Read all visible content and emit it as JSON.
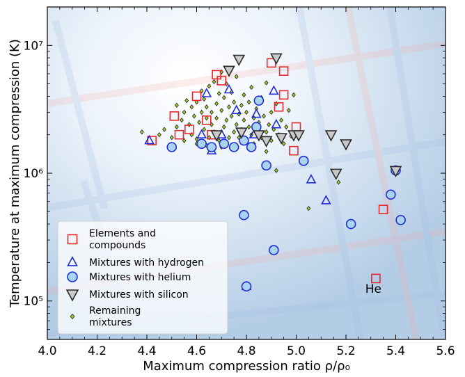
{
  "chart_data": {
    "type": "scatter",
    "xlabel": "Maximum compression ratio ρ/ρ₀",
    "ylabel": "Temperature at maximum compression (K)",
    "xlim": [
      4.0,
      5.6
    ],
    "ylim": [
      50000,
      20000000
    ],
    "yscale": "log",
    "x_ticks": [
      4.0,
      4.2,
      4.4,
      4.6,
      4.8,
      5.0,
      5.2,
      5.4,
      5.6
    ],
    "x_tick_labels": [
      "4.0",
      "4.2",
      "4.4",
      "4.6",
      "4.8",
      "5.0",
      "5.2",
      "5.4",
      "5.6"
    ],
    "y_ticks": [
      100000,
      1000000,
      10000000
    ],
    "y_tick_labels": [
      "10⁵",
      "10⁶",
      "10⁷"
    ],
    "legend_position": "lower-left",
    "annotations": [
      {
        "text": "He",
        "x": 5.31,
        "y": 120000
      }
    ],
    "series": [
      {
        "name": "Elements and compounds",
        "marker": "square",
        "color": "#e8282b",
        "fill": "none",
        "points": [
          [
            4.42,
            1800000
          ],
          [
            4.51,
            2800000
          ],
          [
            4.53,
            2000000
          ],
          [
            4.57,
            2200000
          ],
          [
            4.6,
            4000000
          ],
          [
            4.64,
            2600000
          ],
          [
            4.66,
            2000000
          ],
          [
            4.68,
            5900000
          ],
          [
            4.7,
            5300000
          ],
          [
            4.9,
            7300000
          ],
          [
            4.95,
            6300000
          ],
          [
            4.93,
            3300000
          ],
          [
            4.95,
            4100000
          ],
          [
            4.99,
            1500000
          ],
          [
            5.0,
            2300000
          ],
          [
            5.35,
            520000
          ],
          [
            5.32,
            150000
          ]
        ]
      },
      {
        "name": "Mixtures with hydrogen",
        "marker": "triangle-up",
        "color": "#1f2bd6",
        "fill": "none",
        "points": [
          [
            4.41,
            1800000
          ],
          [
            4.62,
            2000000
          ],
          [
            4.64,
            4200000
          ],
          [
            4.66,
            1500000
          ],
          [
            4.7,
            2000000
          ],
          [
            4.73,
            4500000
          ],
          [
            4.76,
            3100000
          ],
          [
            4.83,
            2000000
          ],
          [
            4.84,
            2900000
          ],
          [
            4.91,
            4400000
          ],
          [
            4.92,
            2400000
          ],
          [
            5.06,
            890000
          ],
          [
            5.12,
            610000
          ],
          [
            4.8,
            130000
          ]
        ]
      },
      {
        "name": "Mixtures with helium",
        "marker": "circle",
        "color": "#1f2bd6",
        "fill": "#a8d4f0",
        "points": [
          [
            4.5,
            1600000
          ],
          [
            4.62,
            1700000
          ],
          [
            4.66,
            1600000
          ],
          [
            4.71,
            1700000
          ],
          [
            4.75,
            1600000
          ],
          [
            4.79,
            1800000
          ],
          [
            4.82,
            1600000
          ],
          [
            4.84,
            2300000
          ],
          [
            4.85,
            3700000
          ],
          [
            4.88,
            1150000
          ],
          [
            5.03,
            1250000
          ],
          [
            4.79,
            470000
          ],
          [
            4.8,
            130000
          ],
          [
            4.91,
            250000
          ],
          [
            5.22,
            400000
          ],
          [
            5.38,
            680000
          ],
          [
            5.4,
            1050000
          ],
          [
            5.42,
            430000
          ]
        ]
      },
      {
        "name": "Mixtures with silicon",
        "marker": "triangle-down",
        "color": "#2a2a2a",
        "fill": "#c9c9c9",
        "points": [
          [
            4.68,
            2000000
          ],
          [
            4.73,
            6400000
          ],
          [
            4.77,
            7800000
          ],
          [
            4.78,
            2100000
          ],
          [
            4.85,
            2000000
          ],
          [
            4.88,
            1800000
          ],
          [
            4.92,
            8000000
          ],
          [
            4.94,
            1900000
          ],
          [
            4.99,
            2000000
          ],
          [
            5.01,
            2000000
          ],
          [
            5.14,
            2000000
          ],
          [
            5.16,
            1000000
          ],
          [
            5.2,
            1700000
          ],
          [
            5.4,
            1050000
          ]
        ]
      },
      {
        "name": "Remaining mixtures",
        "marker": "diamond",
        "color": "#1a1a1a",
        "fill": "#a4d12e",
        "points": [
          [
            4.38,
            2100000
          ],
          [
            4.45,
            2000000
          ],
          [
            4.47,
            2200000
          ],
          [
            4.5,
            1900000
          ],
          [
            4.52,
            2300000
          ],
          [
            4.54,
            2600000
          ],
          [
            4.55,
            3000000
          ],
          [
            4.56,
            3700000
          ],
          [
            4.57,
            2400000
          ],
          [
            4.58,
            3300000
          ],
          [
            4.58,
            2000000
          ],
          [
            4.59,
            2800000
          ],
          [
            4.6,
            3600000
          ],
          [
            4.6,
            1850000
          ],
          [
            4.61,
            2500000
          ],
          [
            4.62,
            4400000
          ],
          [
            4.62,
            3000000
          ],
          [
            4.63,
            2200000
          ],
          [
            4.63,
            3800000
          ],
          [
            4.64,
            3300000
          ],
          [
            4.64,
            2700000
          ],
          [
            4.65,
            1900000
          ],
          [
            4.65,
            4800000
          ],
          [
            4.66,
            3000000
          ],
          [
            4.66,
            2400000
          ],
          [
            4.67,
            5200000
          ],
          [
            4.67,
            2100000
          ],
          [
            4.68,
            3500000
          ],
          [
            4.68,
            2700000
          ],
          [
            4.69,
            4200000
          ],
          [
            4.69,
            1800000
          ],
          [
            4.7,
            6200000
          ],
          [
            4.7,
            3100000
          ],
          [
            4.71,
            2300000
          ],
          [
            4.71,
            3900000
          ],
          [
            4.72,
            2600000
          ],
          [
            4.72,
            5000000
          ],
          [
            4.73,
            1900000
          ],
          [
            4.73,
            3300000
          ],
          [
            4.74,
            2800000
          ],
          [
            4.74,
            4300000
          ],
          [
            4.75,
            2100000
          ],
          [
            4.75,
            3600000
          ],
          [
            4.76,
            5700000
          ],
          [
            4.76,
            2400000
          ],
          [
            4.77,
            2900000
          ],
          [
            4.77,
            1900000
          ],
          [
            4.78,
            3400000
          ],
          [
            4.78,
            2200000
          ],
          [
            4.79,
            4100000
          ],
          [
            4.79,
            2600000
          ],
          [
            4.8,
            1800000
          ],
          [
            4.8,
            3000000
          ],
          [
            4.81,
            2300000
          ],
          [
            4.81,
            3600000
          ],
          [
            4.82,
            2000000
          ],
          [
            4.82,
            4700000
          ],
          [
            4.83,
            2700000
          ],
          [
            4.83,
            1700000
          ],
          [
            4.84,
            3200000
          ],
          [
            4.84,
            2200000
          ],
          [
            4.85,
            2500000
          ],
          [
            4.86,
            1900000
          ],
          [
            4.86,
            3900000
          ],
          [
            4.87,
            2800000
          ],
          [
            4.88,
            2100000
          ],
          [
            4.88,
            5100000
          ],
          [
            4.89,
            2400000
          ],
          [
            4.9,
            1800000
          ],
          [
            4.9,
            3000000
          ],
          [
            4.91,
            2200000
          ],
          [
            4.92,
            3500000
          ],
          [
            4.93,
            2000000
          ],
          [
            4.94,
            2600000
          ],
          [
            4.95,
            1700000
          ],
          [
            4.96,
            2300000
          ],
          [
            4.97,
            3100000
          ],
          [
            4.98,
            1950000
          ],
          [
            4.99,
            4100000
          ],
          [
            4.6,
            1700000
          ],
          [
            4.64,
            1650000
          ],
          [
            4.7,
            1600000
          ],
          [
            4.76,
            1550000
          ],
          [
            4.82,
            1520000
          ],
          [
            4.88,
            1480000
          ],
          [
            4.92,
            1050000
          ],
          [
            5.05,
            530000
          ],
          [
            5.17,
            850000
          ],
          [
            4.55,
            1800000
          ],
          [
            4.52,
            3400000
          ]
        ]
      }
    ]
  }
}
